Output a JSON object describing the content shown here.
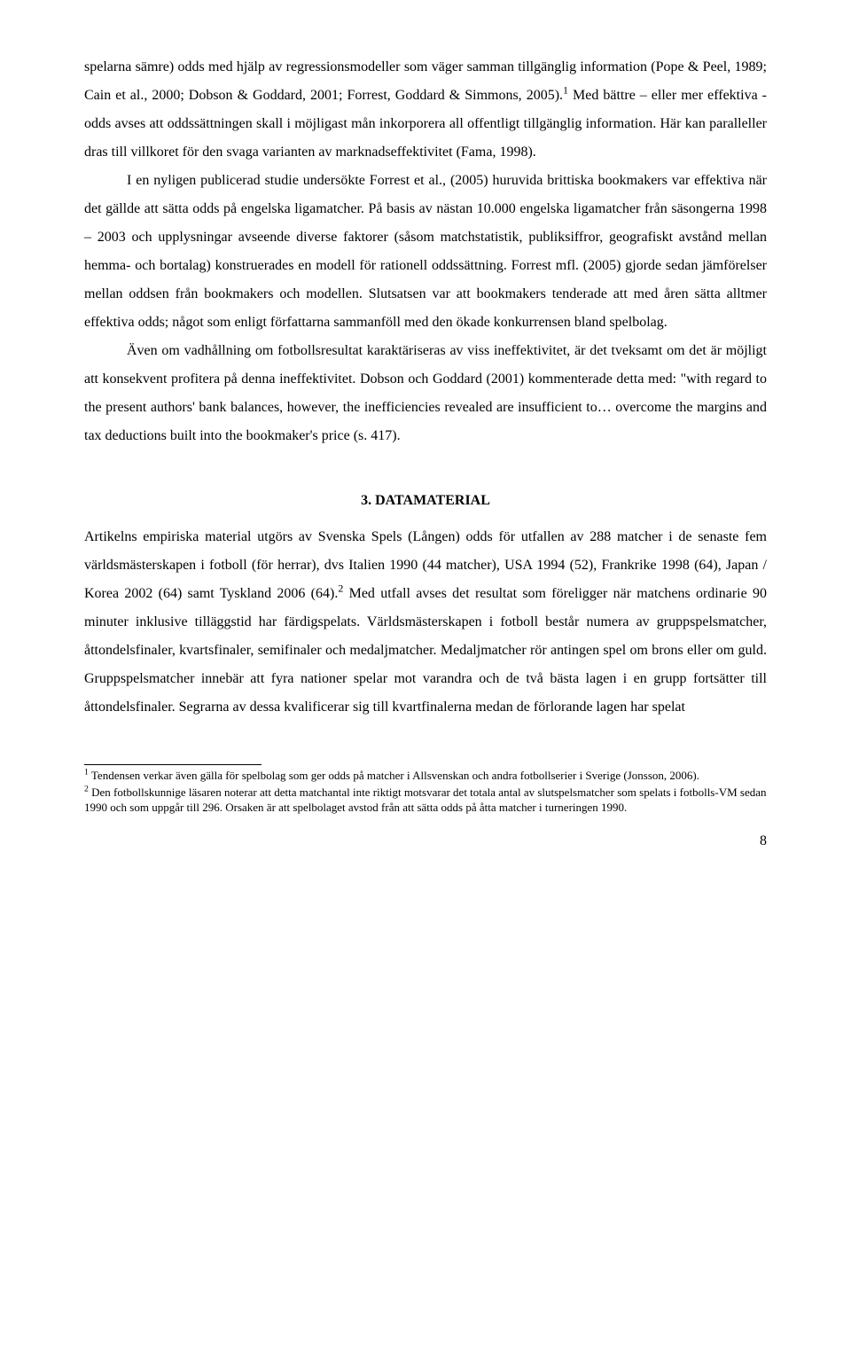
{
  "paragraphs": {
    "p1": "spelarna sämre) odds med hjälp av regressionsmodeller som väger samman tillgänglig information (Pope & Peel, 1989; Cain et al., 2000; Dobson & Goddard, 2001; Forrest, Goddard & Simmons, 2005).",
    "p1_sup": "1",
    "p1_cont": " Med bättre – eller mer effektiva - odds avses att oddssättningen skall i möjligast mån inkorporera all offentligt tillgänglig information. Här kan paralleller dras till villkoret för den svaga varianten av marknadseffektivitet (Fama, 1998).",
    "p2": "I en nyligen publicerad studie undersökte Forrest et al., (2005) huruvida brittiska bookmakers var effektiva när det gällde att sätta odds på engelska ligamatcher. På basis av nästan 10.000 engelska ligamatcher från säsongerna 1998 – 2003 och upplysningar avseende diverse faktorer (såsom matchstatistik, publiksiffror, geografiskt avstånd mellan hemma- och bortalag) konstruerades en modell för rationell oddssättning. Forrest mfl. (2005) gjorde sedan jämförelser mellan oddsen från bookmakers och modellen. Slutsatsen var att bookmakers tenderade att med åren sätta alltmer effektiva odds; något som enligt författarna sammanföll med den ökade konkurrensen bland spelbolag.",
    "p3": "Även om vadhållning om fotbollsresultat karaktäriseras av viss ineffektivitet, är det tveksamt om det är möjligt att konsekvent profitera på denna ineffektivitet. Dobson och Goddard (2001) kommenterade detta med: \"with regard to the present authors' bank balances, however, the inefficiencies revealed are insufficient to… overcome the margins and tax deductions built into the bookmaker's price (s. 417)."
  },
  "section": {
    "heading": "3. DATAMATERIAL"
  },
  "body2": {
    "p4a": "Artikelns empiriska material utgörs av Svenska Spels (Lången) odds för utfallen av 288 matcher i de senaste fem världsmästerskapen i fotboll (för herrar), dvs Italien 1990 (44 matcher), USA 1994 (52), Frankrike 1998 (64), Japan / Korea 2002 (64) samt Tyskland 2006 (64).",
    "p4_sup": "2",
    "p4b": " Med utfall avses det resultat som föreligger när matchens ordinarie 90 minuter inklusive tilläggstid har färdigspelats. Världsmästerskapen i fotboll består numera av gruppspelsmatcher, åttondelsfinaler, kvartsfinaler, semifinaler och medaljmatcher. Medaljmatcher rör antingen spel om brons eller om guld. Gruppspelsmatcher innebär att fyra nationer spelar mot varandra och de två bästa lagen i en grupp fortsätter till åttondelsfinaler. Segrarna av dessa kvalificerar sig till kvartfinalerna medan de förlorande lagen har spelat"
  },
  "footnotes": {
    "f1_sup": "1",
    "f1": " Tendensen verkar även gälla för spelbolag som ger odds på matcher i Allsvenskan och andra fotbollserier i Sverige (Jonsson, 2006).",
    "f2_sup": "2",
    "f2": " Den fotbollskunnige läsaren noterar att detta matchantal inte riktigt motsvarar det totala antal av slutspelsmatcher som spelats i fotbolls-VM sedan 1990 och som uppgår till 296. Orsaken är att spelbolaget avstod från att sätta odds på åtta matcher i turneringen 1990."
  },
  "page_number": "8"
}
